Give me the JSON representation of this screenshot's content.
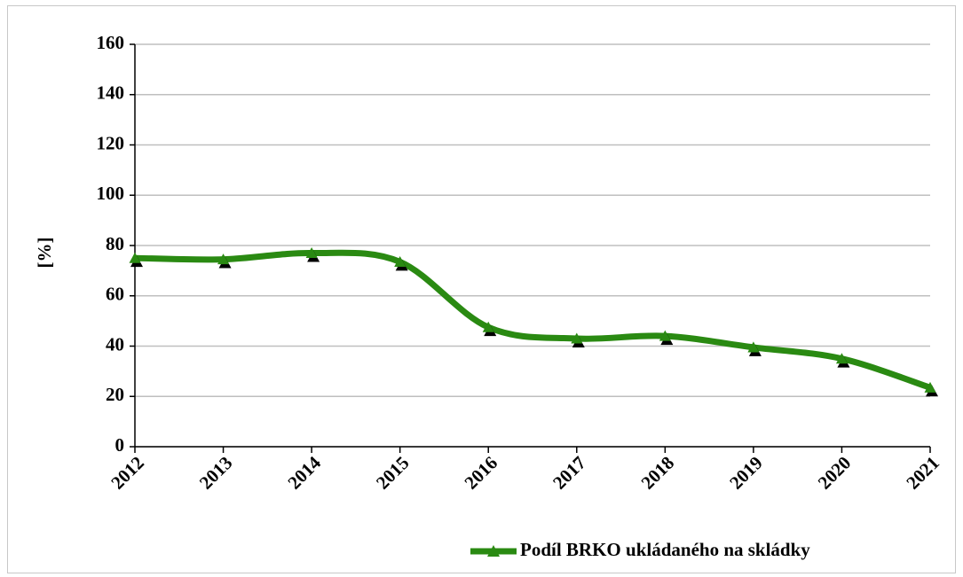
{
  "chart_data": {
    "type": "line",
    "categories": [
      "2012",
      "2013",
      "2014",
      "2015",
      "2016",
      "2017",
      "2018",
      "2019",
      "2020",
      "2021"
    ],
    "series": [
      {
        "name": "Podíl BRKO ukládaného na skládky",
        "color": "#2a8a12",
        "values": [
          75,
          74.5,
          77,
          73.5,
          47.5,
          43,
          44,
          39.5,
          35,
          23.5
        ]
      }
    ],
    "y_label": "[%]",
    "ylim": [
      0,
      160
    ],
    "yticks": [
      0,
      20,
      40,
      60,
      80,
      100,
      120,
      140,
      160
    ],
    "grid": true,
    "smooth": true,
    "legend": "bottom-right"
  }
}
